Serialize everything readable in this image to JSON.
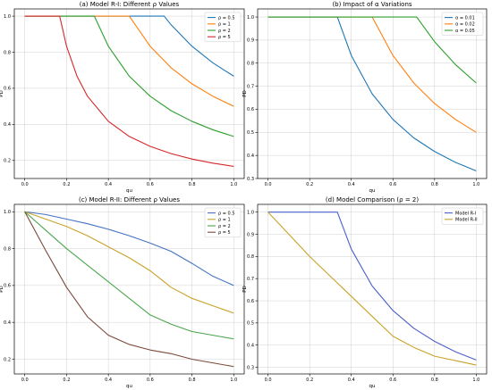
{
  "chart_data": [
    {
      "type": "line",
      "title": "(a) Model R-I: Different ρ Values",
      "xlabel": "qu",
      "ylabel": "PD",
      "xlim": [
        -0.05,
        1.05
      ],
      "ylim": [
        0.1,
        1.04
      ],
      "xticks": [
        0.0,
        0.2,
        0.4,
        0.6,
        0.8,
        1.0
      ],
      "yticks": [
        0.2,
        0.4,
        0.6,
        0.8,
        1.0
      ],
      "grid": true,
      "legend_position": "top-right",
      "series": [
        {
          "name": "ρ = 0.5",
          "color": "#1f77b4",
          "x": [
            0.0,
            0.1,
            0.2,
            0.3,
            0.4,
            0.5,
            0.6,
            0.667,
            0.7,
            0.8,
            0.9,
            1.0
          ],
          "y": [
            1.0,
            1.0,
            1.0,
            1.0,
            1.0,
            1.0,
            1.0,
            1.0,
            0.952,
            0.833,
            0.741,
            0.667
          ]
        },
        {
          "name": "ρ = 1",
          "color": "#ff7f0e",
          "x": [
            0.0,
            0.1,
            0.2,
            0.3,
            0.4,
            0.5,
            0.6,
            0.7,
            0.8,
            0.9,
            1.0
          ],
          "y": [
            1.0,
            1.0,
            1.0,
            1.0,
            1.0,
            1.0,
            0.833,
            0.714,
            0.625,
            0.556,
            0.5
          ]
        },
        {
          "name": "ρ = 2",
          "color": "#2ca02c",
          "x": [
            0.0,
            0.1,
            0.2,
            0.3,
            0.333,
            0.4,
            0.5,
            0.6,
            0.7,
            0.8,
            0.9,
            1.0
          ],
          "y": [
            1.0,
            1.0,
            1.0,
            1.0,
            1.0,
            0.833,
            0.667,
            0.556,
            0.476,
            0.417,
            0.37,
            0.333
          ]
        },
        {
          "name": "ρ = 5",
          "color": "#d62728",
          "x": [
            0.0,
            0.1,
            0.167,
            0.2,
            0.25,
            0.3,
            0.4,
            0.5,
            0.6,
            0.7,
            0.8,
            0.9,
            1.0
          ],
          "y": [
            1.0,
            1.0,
            1.0,
            0.833,
            0.667,
            0.556,
            0.417,
            0.333,
            0.278,
            0.238,
            0.208,
            0.185,
            0.167
          ]
        }
      ]
    },
    {
      "type": "line",
      "title": "(b) Impact of α Variations",
      "xlabel": "qu",
      "ylabel": "PD",
      "xlim": [
        -0.05,
        1.05
      ],
      "ylim": [
        0.3,
        1.035
      ],
      "xticks": [
        0.0,
        0.2,
        0.4,
        0.6,
        0.8,
        1.0
      ],
      "yticks": [
        0.3,
        0.4,
        0.5,
        0.6,
        0.7,
        0.8,
        0.9,
        1.0
      ],
      "grid": true,
      "legend_position": "top-right",
      "series": [
        {
          "name": "α = 0.01",
          "color": "#1f77b4",
          "x": [
            0.0,
            0.1,
            0.2,
            0.3,
            0.333,
            0.4,
            0.5,
            0.6,
            0.7,
            0.8,
            0.9,
            1.0
          ],
          "y": [
            1.0,
            1.0,
            1.0,
            1.0,
            1.0,
            0.833,
            0.667,
            0.556,
            0.476,
            0.417,
            0.37,
            0.333
          ]
        },
        {
          "name": "α = 0.02",
          "color": "#ff7f0e",
          "x": [
            0.0,
            0.1,
            0.2,
            0.3,
            0.4,
            0.5,
            0.6,
            0.7,
            0.8,
            0.9,
            1.0
          ],
          "y": [
            1.0,
            1.0,
            1.0,
            1.0,
            1.0,
            1.0,
            0.833,
            0.714,
            0.625,
            0.556,
            0.5
          ]
        },
        {
          "name": "α = 0.05",
          "color": "#2ca02c",
          "x": [
            0.0,
            0.1,
            0.2,
            0.3,
            0.4,
            0.5,
            0.6,
            0.7,
            0.714,
            0.8,
            0.9,
            1.0
          ],
          "y": [
            1.0,
            1.0,
            1.0,
            1.0,
            1.0,
            1.0,
            1.0,
            1.0,
            1.0,
            0.893,
            0.794,
            0.714
          ]
        }
      ]
    },
    {
      "type": "line",
      "title": "(c) Model R-II: Different ρ Values",
      "xlabel": "qu",
      "ylabel": "PD",
      "xlim": [
        -0.05,
        1.05
      ],
      "ylim": [
        0.12,
        1.04
      ],
      "xticks": [
        0.0,
        0.2,
        0.4,
        0.6,
        0.8,
        1.0
      ],
      "yticks": [
        0.2,
        0.4,
        0.6,
        0.8,
        1.0
      ],
      "grid": true,
      "legend_position": "top-right",
      "series": [
        {
          "name": "ρ = 0.5",
          "color": "#4472c4",
          "x": [
            0.0,
            0.1,
            0.2,
            0.3,
            0.4,
            0.5,
            0.6,
            0.7,
            0.8,
            0.9,
            1.0
          ],
          "y": [
            1.0,
            0.985,
            0.96,
            0.935,
            0.905,
            0.87,
            0.83,
            0.785,
            0.72,
            0.65,
            0.6
          ]
        },
        {
          "name": "ρ = 1",
          "color": "#c9a227",
          "x": [
            0.0,
            0.1,
            0.2,
            0.3,
            0.4,
            0.5,
            0.6,
            0.7,
            0.8,
            0.9,
            1.0
          ],
          "y": [
            1.0,
            0.96,
            0.92,
            0.87,
            0.81,
            0.75,
            0.68,
            0.59,
            0.53,
            0.49,
            0.45
          ]
        },
        {
          "name": "ρ = 2",
          "color": "#4ca64c",
          "x": [
            0.0,
            0.1,
            0.2,
            0.3,
            0.4,
            0.5,
            0.6,
            0.7,
            0.8,
            0.9,
            1.0
          ],
          "y": [
            1.0,
            0.9,
            0.8,
            0.71,
            0.62,
            0.53,
            0.44,
            0.39,
            0.35,
            0.33,
            0.31
          ]
        },
        {
          "name": "ρ = 5",
          "color": "#7b4a3a",
          "x": [
            0.0,
            0.1,
            0.2,
            0.3,
            0.4,
            0.5,
            0.6,
            0.7,
            0.8,
            0.9,
            1.0
          ],
          "y": [
            1.0,
            0.79,
            0.59,
            0.43,
            0.33,
            0.28,
            0.25,
            0.23,
            0.2,
            0.18,
            0.16
          ]
        }
      ]
    },
    {
      "type": "line",
      "title": "(d) Model Comparison (ρ = 2)",
      "xlabel": "qu",
      "ylabel": "PD",
      "xlim": [
        -0.05,
        1.05
      ],
      "ylim": [
        0.27,
        1.035
      ],
      "xticks": [
        0.0,
        0.2,
        0.4,
        0.6,
        0.8,
        1.0
      ],
      "yticks": [
        0.3,
        0.4,
        0.5,
        0.6,
        0.7,
        0.8,
        0.9,
        1.0
      ],
      "grid": true,
      "legend_position": "top-right",
      "series": [
        {
          "name": "Model R-I",
          "color": "#4b5fc9",
          "x": [
            0.0,
            0.1,
            0.2,
            0.3,
            0.333,
            0.4,
            0.5,
            0.6,
            0.7,
            0.8,
            0.9,
            1.0
          ],
          "y": [
            1.0,
            1.0,
            1.0,
            1.0,
            1.0,
            0.833,
            0.667,
            0.556,
            0.476,
            0.417,
            0.37,
            0.333
          ]
        },
        {
          "name": "Model R-II",
          "color": "#c9a227",
          "x": [
            0.0,
            0.1,
            0.2,
            0.3,
            0.4,
            0.5,
            0.6,
            0.7,
            0.8,
            0.9,
            1.0
          ],
          "y": [
            1.0,
            0.9,
            0.8,
            0.71,
            0.62,
            0.53,
            0.44,
            0.39,
            0.35,
            0.33,
            0.31
          ]
        }
      ]
    }
  ]
}
